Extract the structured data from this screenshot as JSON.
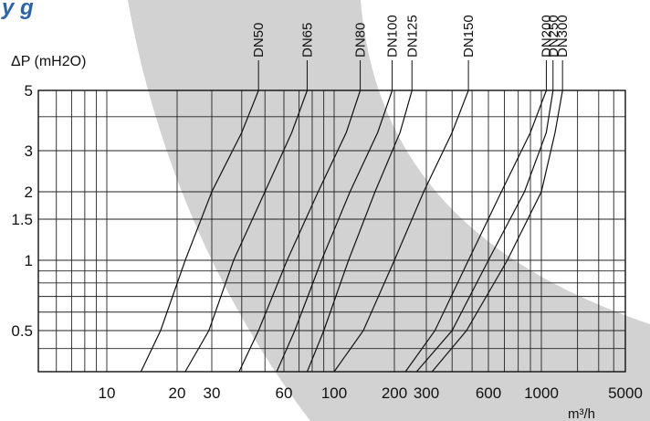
{
  "header_fragment": "y  g",
  "chart_data": {
    "type": "line",
    "title": "",
    "ylabel": "ΔP (mH2O)",
    "xlabel": "m³/h",
    "x_scale": "log",
    "y_scale": "log",
    "xlim": [
      5,
      5000
    ],
    "ylim": [
      0.3,
      5
    ],
    "grid": true,
    "x_ticks": [
      {
        "value": 10,
        "label": "10"
      },
      {
        "value": 20,
        "label": "20"
      },
      {
        "value": 30,
        "label": "30"
      },
      {
        "value": 60,
        "label": "60"
      },
      {
        "value": 100,
        "label": "100"
      },
      {
        "value": 200,
        "label": "200"
      },
      {
        "value": 300,
        "label": "300"
      },
      {
        "value": 600,
        "label": "600"
      },
      {
        "value": 1000,
        "label": "1000"
      },
      {
        "value": 5000,
        "label": "5000"
      }
    ],
    "y_ticks": [
      {
        "value": 5,
        "label": "5"
      },
      {
        "value": 3,
        "label": "3"
      },
      {
        "value": 2,
        "label": "2"
      },
      {
        "value": 1.5,
        "label": "1.5"
      },
      {
        "value": 1,
        "label": "1"
      },
      {
        "value": 0.5,
        "label": "0.5"
      }
    ],
    "series": [
      {
        "name": "DN50",
        "points": [
          [
            14,
            0.3
          ],
          [
            17,
            0.5
          ],
          [
            22,
            1.0
          ],
          [
            30,
            2.0
          ],
          [
            40,
            3.5
          ],
          [
            47,
            5.0
          ]
        ]
      },
      {
        "name": "DN65",
        "points": [
          [
            22,
            0.3
          ],
          [
            29,
            0.5
          ],
          [
            37,
            1.0
          ],
          [
            50,
            2.0
          ],
          [
            65,
            3.5
          ],
          [
            76,
            5.0
          ]
        ]
      },
      {
        "name": "DN80",
        "points": [
          [
            39,
            0.3
          ],
          [
            47,
            0.5
          ],
          [
            62,
            1.0
          ],
          [
            85,
            2.0
          ],
          [
            115,
            3.5
          ],
          [
            135,
            5.0
          ]
        ]
      },
      {
        "name": "DN100",
        "points": [
          [
            56,
            0.3
          ],
          [
            67,
            0.5
          ],
          [
            88,
            1.0
          ],
          [
            120,
            2.0
          ],
          [
            165,
            3.5
          ],
          [
            195,
            5.0
          ]
        ]
      },
      {
        "name": "DN125",
        "points": [
          [
            76,
            0.3
          ],
          [
            90,
            0.5
          ],
          [
            118,
            1.0
          ],
          [
            160,
            2.0
          ],
          [
            215,
            3.5
          ],
          [
            250,
            5.0
          ]
        ]
      },
      {
        "name": "DN150",
        "points": [
          [
            100,
            0.3
          ],
          [
            140,
            0.5
          ],
          [
            200,
            1.0
          ],
          [
            290,
            2.0
          ],
          [
            400,
            3.5
          ],
          [
            480,
            5.0
          ]
        ]
      },
      {
        "name": "DN200",
        "points": [
          [
            230,
            0.3
          ],
          [
            330,
            0.5
          ],
          [
            480,
            1.0
          ],
          [
            680,
            2.0
          ],
          [
            900,
            3.5
          ],
          [
            1100,
            5.0
          ]
        ]
      },
      {
        "name": "DN250",
        "points": [
          [
            265,
            0.3
          ],
          [
            400,
            0.5
          ],
          [
            600,
            1.0
          ],
          [
            850,
            2.0
          ],
          [
            1100,
            3.5
          ],
          [
            1250,
            5.0
          ]
        ]
      },
      {
        "name": "DN300",
        "points": [
          [
            320,
            0.3
          ],
          [
            470,
            0.5
          ],
          [
            720,
            1.0
          ],
          [
            1000,
            2.0
          ],
          [
            1300,
            3.5
          ],
          [
            1500,
            5.0
          ]
        ]
      }
    ]
  }
}
